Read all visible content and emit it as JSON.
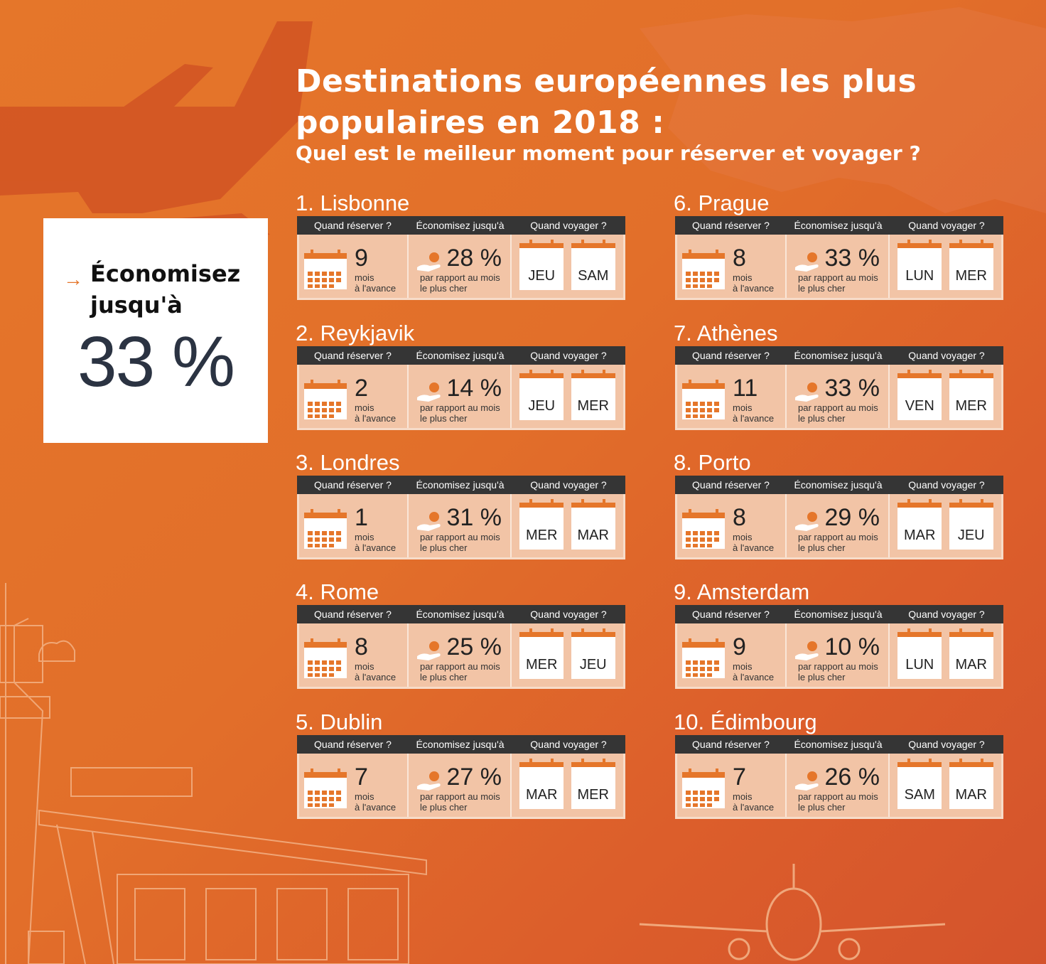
{
  "title": "Destinations européennes les plus populaires en 2018 :",
  "subtitle": "Quel est le meilleur moment pour réserver et voyager ?",
  "promo": {
    "arrow": "→",
    "label": "Économisez jusqu'à",
    "value": "33 %"
  },
  "headers": {
    "book": "Quand réserver ?",
    "save": "Économisez jusqu'à",
    "travel": "Quand voyager ?"
  },
  "units": {
    "months_1": "mois",
    "months_2": "à l'avance",
    "save_1": "par rapport au mois",
    "save_2": "le plus cher"
  },
  "destinations": [
    {
      "name": "1. Lisbonne",
      "months": "9",
      "saving": "28 %",
      "days": [
        "JEU",
        "SAM"
      ]
    },
    {
      "name": "2. Reykjavik",
      "months": "2",
      "saving": "14 %",
      "days": [
        "JEU",
        "MER"
      ]
    },
    {
      "name": "3. Londres",
      "months": "1",
      "saving": "31 %",
      "days": [
        "MER",
        "MAR"
      ]
    },
    {
      "name": "4. Rome",
      "months": "8",
      "saving": "25 %",
      "days": [
        "MER",
        "JEU"
      ]
    },
    {
      "name": "5. Dublin",
      "months": "7",
      "saving": "27 %",
      "days": [
        "MAR",
        "MER"
      ]
    },
    {
      "name": "6. Prague",
      "months": "8",
      "saving": "33 %",
      "days": [
        "LUN",
        "MER"
      ]
    },
    {
      "name": "7. Athènes",
      "months": "11",
      "saving": "33 %",
      "days": [
        "VEN",
        "MER"
      ]
    },
    {
      "name": "8. Porto",
      "months": "8",
      "saving": "29 %",
      "days": [
        "MAR",
        "JEU"
      ]
    },
    {
      "name": "9. Amsterdam",
      "months": "9",
      "saving": "10 %",
      "days": [
        "LUN",
        "MAR"
      ]
    },
    {
      "name": "10. Édimbourg",
      "months": "7",
      "saving": "26 %",
      "days": [
        "SAM",
        "MAR"
      ]
    }
  ]
}
